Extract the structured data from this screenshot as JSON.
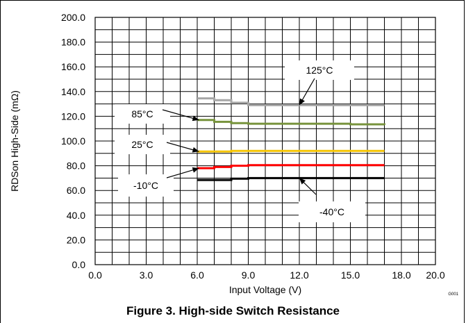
{
  "figure": {
    "caption": "Figure 3. High-side Switch Resistance",
    "code": "G001"
  },
  "chart_data": {
    "type": "line",
    "xlabel": "Input Voltage (V)",
    "ylabel": "RDSon High-Side (mΩ)",
    "xlim": [
      0,
      20
    ],
    "ylim": [
      0,
      200
    ],
    "x_ticks": [
      "0.0",
      "3.0",
      "6.0",
      "9.0",
      "12.0",
      "15.0",
      "18.0",
      "20.0"
    ],
    "y_ticks": [
      "0.0",
      "20.0",
      "40.0",
      "60.0",
      "80.0",
      "100.0",
      "120.0",
      "140.0",
      "160.0",
      "180.0",
      "200.0"
    ],
    "grid": true,
    "legend": "annotations",
    "series": [
      {
        "name": "125°C",
        "color": "#a6a6a6",
        "x": [
          6.0,
          7.0,
          8.0,
          9.0,
          12.0,
          15.0,
          17.0
        ],
        "y": [
          134.5,
          133.0,
          131.0,
          129.0,
          129.0,
          129.0,
          129.0
        ]
      },
      {
        "name": "85°C",
        "color": "#77933c",
        "x": [
          6.0,
          7.0,
          8.0,
          9.0,
          12.0,
          15.0,
          17.0
        ],
        "y": [
          117.0,
          115.5,
          114.5,
          114.0,
          114.0,
          113.5,
          113.0
        ]
      },
      {
        "name": "25°C",
        "color": "#f5c400",
        "x": [
          6.0,
          7.0,
          8.0,
          9.0,
          12.0,
          15.0,
          17.0
        ],
        "y": [
          91.5,
          91.5,
          92.0,
          92.0,
          92.0,
          92.0,
          92.0
        ]
      },
      {
        "name": "-10°C",
        "color": "#ff0000",
        "x": [
          6.0,
          7.0,
          8.0,
          9.0,
          12.0,
          15.0,
          17.0
        ],
        "y": [
          78.0,
          79.0,
          80.0,
          80.5,
          80.5,
          80.5,
          80.5
        ]
      },
      {
        "name": "-40°C",
        "color": "#000000",
        "x": [
          6.0,
          7.0,
          8.0,
          9.0,
          12.0,
          15.0,
          17.0
        ],
        "y": [
          68.5,
          68.5,
          69.5,
          70.0,
          70.0,
          70.0,
          70.0
        ]
      }
    ],
    "annotations": [
      {
        "text": "125°C",
        "series": "125°C",
        "point": [
          12.0,
          129.0
        ]
      },
      {
        "text": "85°C",
        "series": "85°C",
        "point": [
          6.1,
          117.0
        ]
      },
      {
        "text": "25°C",
        "series": "25°C",
        "point": [
          6.1,
          91.5
        ]
      },
      {
        "text": "-10°C",
        "series": "-10°C",
        "point": [
          6.1,
          78.0
        ]
      },
      {
        "text": "-40°C",
        "series": "-40°C",
        "point": [
          12.0,
          70.0
        ]
      }
    ]
  }
}
